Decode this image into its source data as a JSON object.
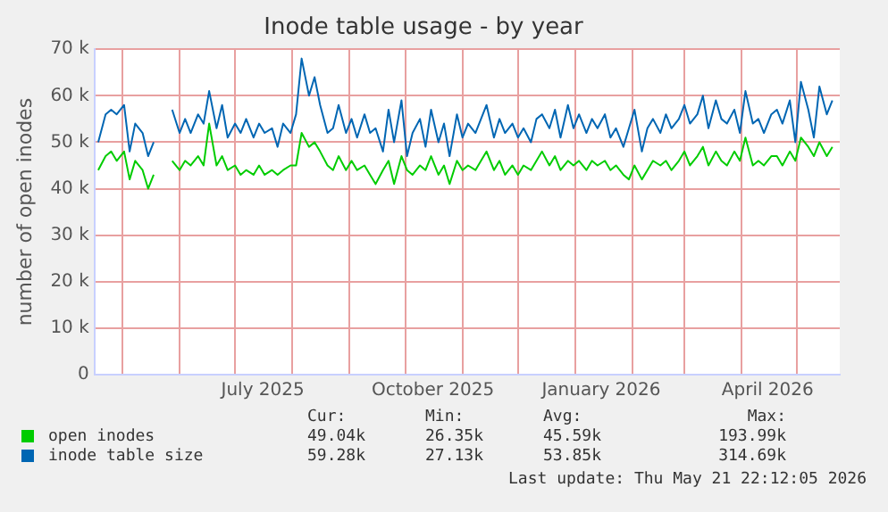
{
  "chart_data": {
    "type": "line",
    "title": "Inode table usage - by year",
    "ylabel": "number of open inodes",
    "x": [
      "2025-04-18",
      "2025-04-22",
      "2025-04-25",
      "2025-04-28",
      "2025-05-02",
      "2025-05-05",
      "2025-05-08",
      "2025-05-12",
      "2025-05-15",
      "2025-05-18",
      "2025-05-22",
      "2025-05-25",
      "2025-05-28",
      "2025-06-01",
      "2025-06-04",
      "2025-06-07",
      "2025-06-11",
      "2025-06-14",
      "2025-06-17",
      "2025-06-21",
      "2025-06-24",
      "2025-06-27",
      "2025-07-01",
      "2025-07-04",
      "2025-07-07",
      "2025-07-11",
      "2025-07-14",
      "2025-07-17",
      "2025-07-21",
      "2025-07-24",
      "2025-07-27",
      "2025-07-31",
      "2025-08-03",
      "2025-08-06",
      "2025-08-10",
      "2025-08-13",
      "2025-08-16",
      "2025-08-20",
      "2025-08-23",
      "2025-08-26",
      "2025-08-30",
      "2025-09-02",
      "2025-09-05",
      "2025-09-09",
      "2025-09-12",
      "2025-09-15",
      "2025-09-19",
      "2025-09-22",
      "2025-09-25",
      "2025-09-29",
      "2025-10-02",
      "2025-10-05",
      "2025-10-09",
      "2025-10-12",
      "2025-10-15",
      "2025-10-19",
      "2025-10-22",
      "2025-10-25",
      "2025-10-29",
      "2025-11-01",
      "2025-11-04",
      "2025-11-08",
      "2025-11-11",
      "2025-11-14",
      "2025-11-18",
      "2025-11-21",
      "2025-11-24",
      "2025-11-28",
      "2025-12-01",
      "2025-12-04",
      "2025-12-08",
      "2025-12-11",
      "2025-12-14",
      "2025-12-18",
      "2025-12-21",
      "2025-12-24",
      "2025-12-28",
      "2025-12-31",
      "2026-01-03",
      "2026-01-07",
      "2026-01-10",
      "2026-01-13",
      "2026-01-17",
      "2026-01-20",
      "2026-01-23",
      "2026-01-27",
      "2026-01-30",
      "2026-02-02",
      "2026-02-06",
      "2026-02-09",
      "2026-02-12",
      "2026-02-16",
      "2026-02-19",
      "2026-02-22",
      "2026-02-26",
      "2026-03-01",
      "2026-03-04",
      "2026-03-08",
      "2026-03-11",
      "2026-03-14",
      "2026-03-18",
      "2026-03-21",
      "2026-03-24",
      "2026-03-28",
      "2026-03-31",
      "2026-04-03",
      "2026-04-07",
      "2026-04-10",
      "2026-04-13",
      "2026-04-17",
      "2026-04-20",
      "2026-04-23",
      "2026-04-27",
      "2026-04-30",
      "2026-05-03",
      "2026-05-07",
      "2026-05-10",
      "2026-05-13",
      "2026-05-17",
      "2026-05-20"
    ],
    "series": [
      {
        "name": "open inodes",
        "color": "#00cc00",
        "values": [
          44000,
          47000,
          48000,
          46000,
          48000,
          42000,
          46000,
          44000,
          40000,
          43000,
          null,
          null,
          46000,
          44000,
          46000,
          45000,
          47000,
          45000,
          54000,
          45000,
          47000,
          44000,
          45000,
          43000,
          44000,
          43000,
          45000,
          43000,
          44000,
          43000,
          44000,
          45000,
          45000,
          52000,
          49000,
          50000,
          48000,
          45000,
          44000,
          47000,
          44000,
          46000,
          44000,
          45000,
          43000,
          41000,
          44000,
          46000,
          41000,
          47000,
          44000,
          43000,
          45000,
          44000,
          47000,
          43000,
          45000,
          41000,
          46000,
          44000,
          45000,
          44000,
          46000,
          48000,
          44000,
          46000,
          43000,
          45000,
          43000,
          45000,
          44000,
          46000,
          48000,
          45000,
          47000,
          44000,
          46000,
          45000,
          46000,
          44000,
          46000,
          45000,
          46000,
          44000,
          45000,
          43000,
          42000,
          45000,
          42000,
          44000,
          46000,
          45000,
          46000,
          44000,
          46000,
          48000,
          45000,
          47000,
          49000,
          45000,
          48000,
          46000,
          45000,
          48000,
          46000,
          51000,
          45000,
          46000,
          45000,
          47000,
          47000,
          45000,
          48000,
          46000,
          51000,
          49000,
          47000,
          50000,
          47000,
          49000
        ]
      },
      {
        "name": "inode table size",
        "color": "#0066b3",
        "values": [
          50000,
          56000,
          57000,
          56000,
          58000,
          48000,
          54000,
          52000,
          47000,
          50000,
          null,
          null,
          57000,
          52000,
          55000,
          52000,
          56000,
          54000,
          61000,
          53000,
          58000,
          51000,
          54000,
          52000,
          55000,
          51000,
          54000,
          52000,
          53000,
          49000,
          54000,
          52000,
          56000,
          68000,
          60000,
          64000,
          58000,
          52000,
          53000,
          58000,
          52000,
          55000,
          51000,
          56000,
          52000,
          53000,
          48000,
          57000,
          50000,
          59000,
          47000,
          52000,
          55000,
          49000,
          57000,
          50000,
          54000,
          47000,
          56000,
          51000,
          54000,
          52000,
          55000,
          58000,
          51000,
          55000,
          52000,
          54000,
          51000,
          53000,
          50000,
          55000,
          56000,
          53000,
          57000,
          51000,
          58000,
          53000,
          56000,
          52000,
          55000,
          53000,
          56000,
          51000,
          53000,
          49000,
          53000,
          57000,
          48000,
          53000,
          55000,
          52000,
          56000,
          53000,
          55000,
          58000,
          54000,
          56000,
          60000,
          53000,
          59000,
          55000,
          54000,
          57000,
          52000,
          61000,
          54000,
          55000,
          52000,
          56000,
          57000,
          54000,
          59000,
          50000,
          63000,
          57000,
          51000,
          62000,
          56000,
          59000
        ]
      }
    ],
    "xlim": [
      "2025-04-16",
      "2026-05-24"
    ],
    "xticks": [
      {
        "value": "2025-05-01",
        "label": null
      },
      {
        "value": "2025-06-01",
        "label": null
      },
      {
        "value": "2025-07-01",
        "label": null
      },
      {
        "value": "2025-07-16",
        "label": "July 2025"
      },
      {
        "value": "2025-08-01",
        "label": null
      },
      {
        "value": "2025-09-01",
        "label": null
      },
      {
        "value": "2025-10-01",
        "label": null
      },
      {
        "value": "2025-10-16",
        "label": "October 2025"
      },
      {
        "value": "2025-11-01",
        "label": null
      },
      {
        "value": "2025-12-01",
        "label": null
      },
      {
        "value": "2026-01-01",
        "label": null
      },
      {
        "value": "2026-01-15",
        "label": "January 2026"
      },
      {
        "value": "2026-02-01",
        "label": null
      },
      {
        "value": "2026-03-01",
        "label": null
      },
      {
        "value": "2026-04-01",
        "label": null
      },
      {
        "value": "2026-04-15",
        "label": "April 2026"
      },
      {
        "value": "2026-05-01",
        "label": null
      }
    ],
    "ylim": [
      0,
      70000
    ],
    "yticks": [
      {
        "value": 0,
        "label": "0"
      },
      {
        "value": 10000,
        "label": "10 k"
      },
      {
        "value": 20000,
        "label": "20 k"
      },
      {
        "value": 30000,
        "label": "30 k"
      },
      {
        "value": 40000,
        "label": "40 k"
      },
      {
        "value": 50000,
        "label": "50 k"
      },
      {
        "value": 60000,
        "label": "60 k"
      },
      {
        "value": 70000,
        "label": "70 k"
      }
    ],
    "grid": true,
    "legend": "bottom",
    "marker": "none",
    "line_style": "solid",
    "annotations": [
      "Cur:",
      "Min:",
      "Avg:",
      "Max:",
      "49.04k",
      "26.35k",
      "45.59k",
      "193.99k",
      "59.28k",
      "27.13k",
      "53.85k",
      "314.69k",
      "Last update: Thu May 21 22:12:05 2026"
    ]
  }
}
